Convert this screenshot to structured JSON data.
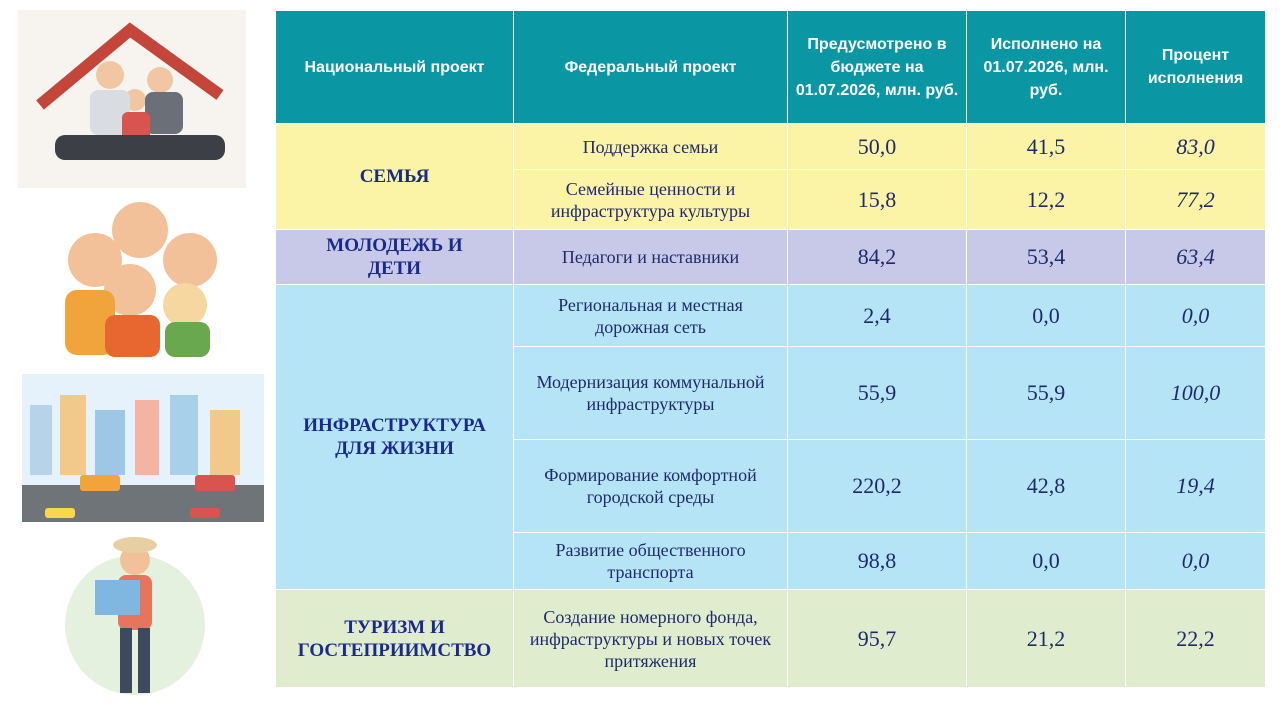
{
  "table": {
    "headers": [
      "Национальный проект",
      "Федеральный проект",
      "Предусмотрено в бюджете на 01.07.2026, млн. руб.",
      "Исполнено на 01.07.2026, млн. руб.",
      "Процент исполнения"
    ],
    "groups": [
      {
        "name": "СЕМЬЯ",
        "rows": [
          [
            "Поддержка семьи",
            "50,0",
            "41,5",
            "83,0"
          ],
          [
            "Семейные ценности и инфраструктура культуры",
            "15,8",
            "12,2",
            "77,2"
          ]
        ]
      },
      {
        "name": "МОЛОДЕЖЬ И ДЕТИ",
        "rows": [
          [
            "Педагоги и наставники",
            "84,2",
            "53,4",
            "63,4"
          ]
        ]
      },
      {
        "name": "ИНФРАСТРУКТУРА ДЛЯ ЖИЗНИ",
        "rows": [
          [
            "Региональная и местная дорожная сеть",
            "2,4",
            "0,0",
            "0,0"
          ],
          [
            "Модернизация коммунальной инфраструктуры",
            "55,9",
            "55,9",
            "100,0"
          ],
          [
            "Формирование комфортной городской среды",
            "220,2",
            "42,8",
            "19,4"
          ],
          [
            "Развитие общественного транспорта",
            "98,8",
            "0,0",
            "0,0"
          ]
        ]
      },
      {
        "name": "ТУРИЗМ И ГОСТЕПРИИМСТВО",
        "rows": [
          [
            "Создание номерного фонда, инфраструктуры и новых точек притяжения",
            "95,7",
            "21,2",
            "22,2"
          ]
        ]
      }
    ]
  }
}
